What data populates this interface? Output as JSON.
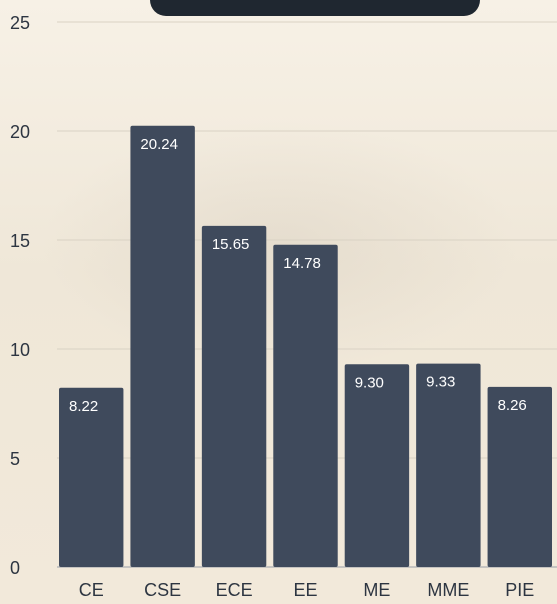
{
  "chart_data": {
    "type": "bar",
    "categories": [
      "CE",
      "CSE",
      "ECE",
      "EE",
      "ME",
      "MME",
      "PIE"
    ],
    "values": [
      8.22,
      20.24,
      15.65,
      14.78,
      9.3,
      9.33,
      8.26
    ],
    "value_labels": [
      "8.22",
      "20.24",
      "15.65",
      "14.78",
      "9.30",
      "9.33",
      "8.26"
    ],
    "y_ticks": [
      "0",
      "5",
      "10",
      "15",
      "20",
      "25"
    ],
    "ylim": [
      0,
      25
    ],
    "grid": true,
    "bar_color": "#3f4a5c",
    "text_color": "#2d3541"
  }
}
